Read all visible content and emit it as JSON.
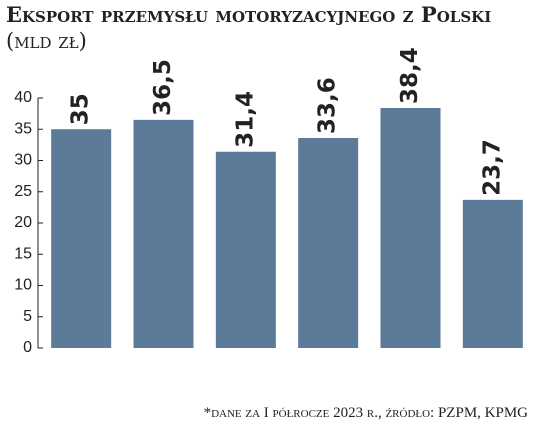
{
  "chart_data": {
    "type": "bar",
    "title": "Eksport przemysłu motoryzacyjnego z Polski",
    "subtitle": "(mld zł)",
    "categories": [
      null,
      null,
      null,
      null,
      null,
      null
    ],
    "values": [
      35,
      36.5,
      31.4,
      33.6,
      38.4,
      23.7
    ],
    "value_labels": [
      "35",
      "36,5",
      "31,4",
      "33,6",
      "38,4",
      "23,7"
    ],
    "color": "#5b7b99",
    "ylim": [
      0,
      40
    ],
    "yticks": [
      0,
      5,
      10,
      15,
      20,
      25,
      30,
      35,
      40
    ],
    "grid": false,
    "note": "*dane za I półrocze 2023 r., źródło: PZPM, KPMG"
  }
}
